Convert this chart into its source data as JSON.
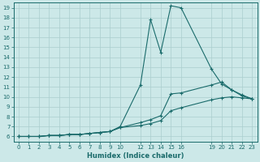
{
  "xlabel": "Humidex (Indice chaleur)",
  "background_color": "#cce8e8",
  "grid_color": "#aacece",
  "line_color": "#1a6b6b",
  "xlim": [
    -0.5,
    23.5
  ],
  "ylim": [
    5.5,
    19.5
  ],
  "yticks": [
    6,
    7,
    8,
    9,
    10,
    11,
    12,
    13,
    14,
    15,
    16,
    17,
    18,
    19
  ],
  "xticks": [
    0,
    1,
    2,
    3,
    4,
    5,
    6,
    7,
    8,
    9,
    10,
    12,
    13,
    14,
    15,
    16,
    19,
    20,
    21,
    22,
    23
  ],
  "xtick_labels": [
    "0",
    "1",
    "2",
    "3",
    "4",
    "5",
    "6",
    "7",
    "8",
    "9",
    "10",
    "12",
    "13",
    "14",
    "15",
    "16",
    "19",
    "20",
    "21",
    "22",
    "23"
  ],
  "lines": [
    {
      "x": [
        0,
        1,
        2,
        3,
        4,
        5,
        6,
        7,
        8,
        9,
        10,
        12,
        13,
        14,
        15,
        16,
        19,
        20,
        21,
        22,
        23
      ],
      "y": [
        6.0,
        6.0,
        6.0,
        6.1,
        6.1,
        6.2,
        6.2,
        6.3,
        6.4,
        6.5,
        7.0,
        11.2,
        17.8,
        14.5,
        19.2,
        19.0,
        12.8,
        11.3,
        10.7,
        10.1,
        9.8
      ]
    },
    {
      "x": [
        0,
        1,
        2,
        3,
        4,
        5,
        6,
        7,
        8,
        9,
        10,
        12,
        13,
        14,
        15,
        16,
        19,
        20,
        21,
        22,
        23
      ],
      "y": [
        6.0,
        6.0,
        6.0,
        6.1,
        6.1,
        6.2,
        6.2,
        6.3,
        6.4,
        6.5,
        6.9,
        7.4,
        7.7,
        8.1,
        10.3,
        10.4,
        11.2,
        11.5,
        10.7,
        10.2,
        9.8
      ]
    },
    {
      "x": [
        0,
        1,
        2,
        3,
        4,
        5,
        6,
        7,
        8,
        9,
        10,
        12,
        13,
        14,
        15,
        16,
        19,
        20,
        21,
        22,
        23
      ],
      "y": [
        6.0,
        6.0,
        6.0,
        6.1,
        6.1,
        6.2,
        6.2,
        6.3,
        6.4,
        6.5,
        6.9,
        7.1,
        7.3,
        7.6,
        8.6,
        8.9,
        9.7,
        9.9,
        10.0,
        9.9,
        9.8
      ]
    }
  ]
}
